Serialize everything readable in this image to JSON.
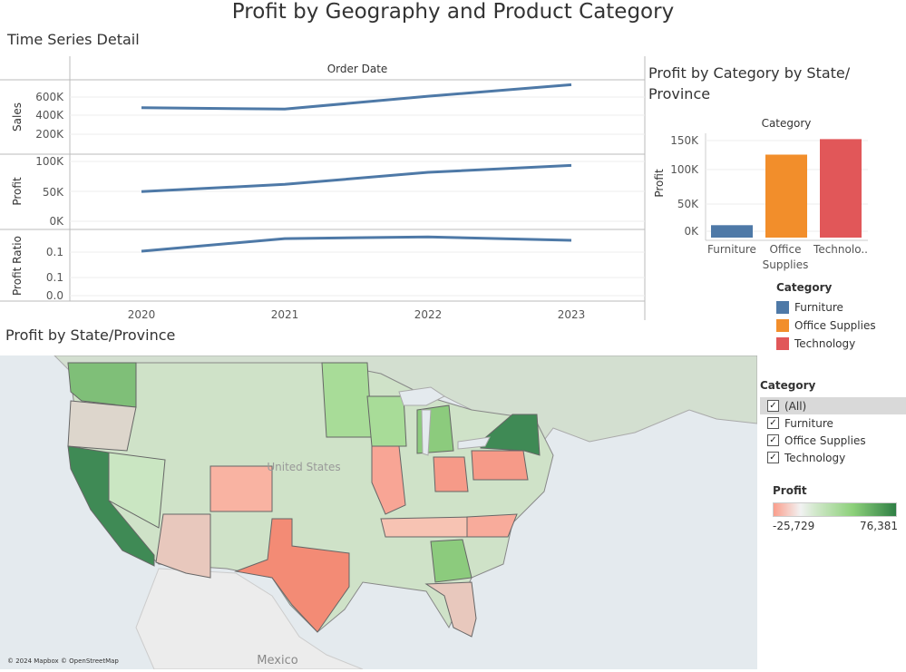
{
  "title": "Profit by Geography and Product Category",
  "time_series": {
    "title": "Time Series Detail",
    "header": "Order Date",
    "years": [
      "2020",
      "2021",
      "2022",
      "2023"
    ],
    "sales": {
      "label": "Sales",
      "ticks": [
        "600K",
        "400K",
        "200K"
      ],
      "values": [
        485000,
        470000,
        609000,
        733000
      ]
    },
    "profit": {
      "label": "Profit",
      "ticks": [
        "100K",
        "50K",
        "0K"
      ],
      "values": [
        49500,
        61600,
        81800,
        93400
      ]
    },
    "ratio": {
      "label": "Profit Ratio",
      "ticks": [
        "0.1",
        "0.1",
        "0.0"
      ],
      "values": [
        0.102,
        0.131,
        0.135,
        0.127
      ]
    }
  },
  "chart_data": {
    "type": "bar",
    "title": "Profit by Category by State/ Province",
    "header": "Category",
    "ylabel": "Profit",
    "categories": [
      "Furniture",
      "Office Supplies",
      "Technology"
    ],
    "category_labels": [
      [
        "Furniture"
      ],
      [
        "Office",
        "Supplies"
      ],
      [
        "Technolo.."
      ]
    ],
    "values": [
      18400,
      122500,
      145500
    ],
    "colors": [
      "#4e79a7",
      "#f28e2b",
      "#e15759"
    ],
    "yticks": [
      "150K",
      "100K",
      "50K",
      "0K"
    ],
    "ylim": [
      0,
      150000
    ]
  },
  "legend": {
    "title": "Category",
    "items": [
      {
        "label": "Furniture",
        "color": "#4e79a7"
      },
      {
        "label": "Office Supplies",
        "color": "#f28e2b"
      },
      {
        "label": "Technology",
        "color": "#e15759"
      }
    ]
  },
  "map": {
    "title": "Profit by State/Province",
    "country_label": "United States",
    "mexico_label": "Mexico",
    "attribution": "© 2024 Mapbox © OpenStreetMap"
  },
  "filter": {
    "title": "Category",
    "items": [
      {
        "label": "(All)",
        "checked": true
      },
      {
        "label": "Furniture",
        "checked": true
      },
      {
        "label": "Office Supplies",
        "checked": true
      },
      {
        "label": "Technology",
        "checked": true
      }
    ]
  },
  "profit_legend": {
    "title": "Profit",
    "min": "-25,729",
    "max": "76,381"
  },
  "colors": {
    "line": "#4e79a7",
    "neg": "#f4826c",
    "pos_dark": "#2f7f45"
  }
}
